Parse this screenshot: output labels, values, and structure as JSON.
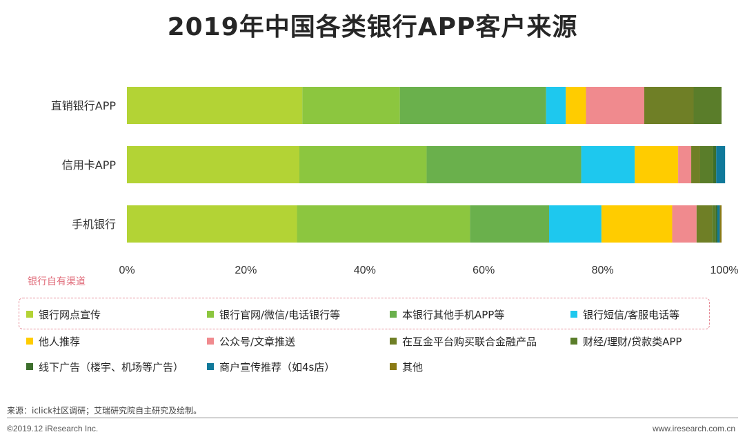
{
  "chart_data": {
    "type": "bar",
    "orientation": "horizontal",
    "stacked": true,
    "title": "2019年中国各类银行APP客户来源",
    "categories": [
      "直销银行APP",
      "信用卡APP",
      "手机银行"
    ],
    "xlim": [
      0,
      100
    ],
    "xticks": [
      "0%",
      "20%",
      "40%",
      "60%",
      "80%",
      "100%"
    ],
    "grid": false,
    "series": [
      {
        "name": "银行网点宣传",
        "color": "#b3d335",
        "values": [
          29.5,
          29.0,
          28.6
        ]
      },
      {
        "name": "银行官网/微信/电话银行等",
        "color": "#8cc63f",
        "values": [
          16.4,
          21.4,
          29.1
        ]
      },
      {
        "name": "本银行其他手机APP等",
        "color": "#6ab04c",
        "values": [
          24.6,
          26.0,
          13.3
        ]
      },
      {
        "name": "银行短信/客服电话等",
        "color": "#1ec8ee",
        "values": [
          3.3,
          9.0,
          8.8
        ]
      },
      {
        "name": "他人推荐",
        "color": "#ffcc00",
        "values": [
          3.4,
          7.3,
          11.9
        ]
      },
      {
        "name": "公众号/文章推送",
        "color": "#f08a8e",
        "values": [
          9.8,
          2.2,
          4.1
        ]
      },
      {
        "name": "在互金平台购买联合金融产品",
        "color": "#6f7f26",
        "values": [
          8.3,
          1.5,
          2.6
        ]
      },
      {
        "name": "财经/理财/贷款类APP",
        "color": "#5a7d2a",
        "values": [
          4.7,
          2.2,
          0.6
        ]
      },
      {
        "name": "线下广告（楼宇、机场等广告）",
        "color": "#3c6e2c",
        "values": [
          0.0,
          0.5,
          0.3
        ]
      },
      {
        "name": "商户宣传推荐（如4s店）",
        "color": "#10799a",
        "values": [
          0.0,
          1.5,
          0.4
        ]
      },
      {
        "name": "其他",
        "color": "#8a7a14",
        "values": [
          0.0,
          0.0,
          0.3
        ]
      }
    ]
  },
  "own_channel_label": "银行自有渠道",
  "source_note": "来源：iclick社区调研；艾瑞研究院自主研究及绘制。",
  "footer": {
    "copyright": "©2019.12 iResearch Inc.",
    "website": "www.iresearch.com.cn"
  }
}
